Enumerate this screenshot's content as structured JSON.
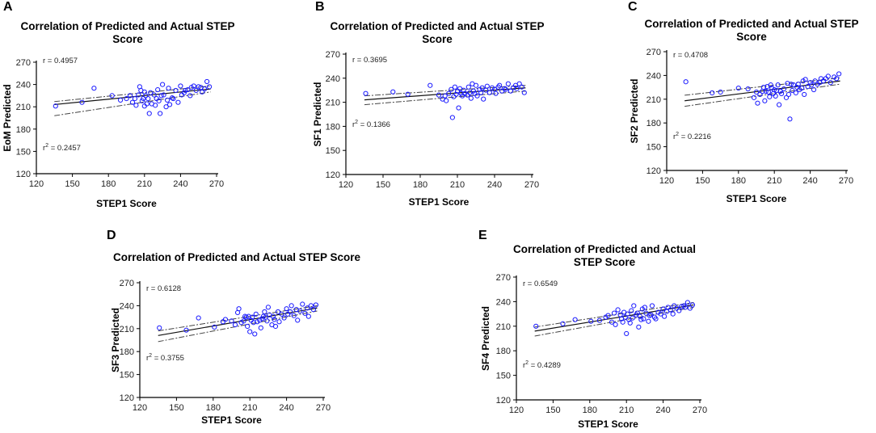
{
  "chart_data": [
    {
      "panel": "A",
      "type": "scatter",
      "title_lines": [
        "Correlation of Predicted and Actual STEP",
        "Score"
      ],
      "xlabel": "STEP1 Score",
      "ylabel": "EoM Predicted",
      "xlim": [
        120,
        270
      ],
      "ylim": [
        120,
        270
      ],
      "xticks": [
        "120",
        "150",
        "180",
        "210",
        "240",
        "270"
      ],
      "yticks": [
        "120",
        "150",
        "180",
        "210",
        "240",
        "270"
      ],
      "r_label": "r = 0.4957",
      "r2_prefix": "r",
      "r2_sup": "2",
      "r2_value": " = 0.2457",
      "fit": {
        "x": [
          135,
          265
        ],
        "y": [
          213,
          234
        ],
        "ci_lower": [
          198,
          230
        ],
        "ci_upper": [
          217,
          238
        ]
      },
      "points": [
        [
          136,
          211
        ],
        [
          158,
          216
        ],
        [
          168,
          235
        ],
        [
          183,
          225
        ],
        [
          190,
          219
        ],
        [
          195,
          221
        ],
        [
          198,
          225
        ],
        [
          200,
          216
        ],
        [
          202,
          221
        ],
        [
          203,
          212
        ],
        [
          205,
          226
        ],
        [
          206,
          237
        ],
        [
          207,
          232
        ],
        [
          208,
          218
        ],
        [
          209,
          221
        ],
        [
          210,
          230
        ],
        [
          210,
          211
        ],
        [
          211,
          225
        ],
        [
          212,
          214
        ],
        [
          213,
          221
        ],
        [
          214,
          201
        ],
        [
          215,
          229
        ],
        [
          216,
          214
        ],
        [
          218,
          226
        ],
        [
          219,
          212
        ],
        [
          220,
          221
        ],
        [
          221,
          233
        ],
        [
          222,
          218
        ],
        [
          223,
          201
        ],
        [
          224,
          225
        ],
        [
          225,
          240
        ],
        [
          226,
          226
        ],
        [
          228,
          210
        ],
        [
          229,
          219
        ],
        [
          230,
          235
        ],
        [
          231,
          213
        ],
        [
          233,
          222
        ],
        [
          234,
          221
        ],
        [
          236,
          232
        ],
        [
          238,
          216
        ],
        [
          240,
          238
        ],
        [
          241,
          226
        ],
        [
          243,
          229
        ],
        [
          244,
          232
        ],
        [
          246,
          233
        ],
        [
          248,
          225
        ],
        [
          249,
          236
        ],
        [
          251,
          238
        ],
        [
          253,
          232
        ],
        [
          255,
          237
        ],
        [
          257,
          236
        ],
        [
          258,
          230
        ],
        [
          260,
          234
        ],
        [
          262,
          244
        ],
        [
          264,
          237
        ]
      ]
    },
    {
      "panel": "B",
      "type": "scatter",
      "title_lines": [
        "Correlation of Predicted and Actual STEP",
        "Score"
      ],
      "xlabel": "STEP1 Score",
      "ylabel": "SF1 Predicted",
      "xlim": [
        120,
        270
      ],
      "ylim": [
        120,
        270
      ],
      "xticks": [
        "120",
        "150",
        "180",
        "210",
        "240",
        "270"
      ],
      "yticks": [
        "120",
        "150",
        "180",
        "210",
        "240",
        "270"
      ],
      "r_label": "r = 0.3695",
      "r2_prefix": "r",
      "r2_sup": "2",
      "r2_value": " = 0.1366",
      "fit": {
        "x": [
          135,
          265
        ],
        "y": [
          213,
          228
        ],
        "ci_lower": [
          207,
          224
        ],
        "ci_upper": [
          218,
          231
        ]
      },
      "points": [
        [
          136,
          221
        ],
        [
          158,
          223
        ],
        [
          170,
          220
        ],
        [
          188,
          231
        ],
        [
          195,
          219
        ],
        [
          198,
          214
        ],
        [
          200,
          218
        ],
        [
          201,
          212
        ],
        [
          203,
          221
        ],
        [
          205,
          226
        ],
        [
          206,
          191
        ],
        [
          207,
          217
        ],
        [
          208,
          229
        ],
        [
          209,
          220
        ],
        [
          210,
          224
        ],
        [
          211,
          203
        ],
        [
          212,
          227
        ],
        [
          213,
          221
        ],
        [
          214,
          218
        ],
        [
          215,
          225
        ],
        [
          216,
          221
        ],
        [
          218,
          219
        ],
        [
          219,
          229
        ],
        [
          220,
          222
        ],
        [
          221,
          215
        ],
        [
          222,
          233
        ],
        [
          223,
          224
        ],
        [
          224,
          221
        ],
        [
          225,
          231
        ],
        [
          226,
          218
        ],
        [
          228,
          226
        ],
        [
          229,
          222
        ],
        [
          230,
          228
        ],
        [
          231,
          214
        ],
        [
          233,
          225
        ],
        [
          234,
          230
        ],
        [
          236,
          222
        ],
        [
          238,
          228
        ],
        [
          240,
          226
        ],
        [
          241,
          221
        ],
        [
          243,
          229
        ],
        [
          244,
          231
        ],
        [
          246,
          224
        ],
        [
          248,
          227
        ],
        [
          249,
          226
        ],
        [
          251,
          233
        ],
        [
          253,
          224
        ],
        [
          255,
          228
        ],
        [
          257,
          231
        ],
        [
          258,
          227
        ],
        [
          260,
          233
        ],
        [
          262,
          229
        ],
        [
          264,
          222
        ]
      ]
    },
    {
      "panel": "C",
      "type": "scatter",
      "title_lines": [
        "Correlation of Predicted and Actual STEP",
        "Score"
      ],
      "xlabel": "STEP1 Score",
      "ylabel": "SF2 Predicted",
      "xlim": [
        120,
        270
      ],
      "ylim": [
        120,
        270
      ],
      "xticks": [
        "120",
        "150",
        "180",
        "210",
        "240",
        "270"
      ],
      "yticks": [
        "120",
        "150",
        "180",
        "210",
        "240",
        "270"
      ],
      "r_label": "r = 0.4708",
      "r2_prefix": "r",
      "r2_sup": "2",
      "r2_value": " = 0.2216",
      "fit": {
        "x": [
          135,
          265
        ],
        "y": [
          208,
          233
        ],
        "ci_lower": [
          201,
          229
        ],
        "ci_upper": [
          215,
          237
        ]
      },
      "points": [
        [
          136,
          232
        ],
        [
          158,
          218
        ],
        [
          165,
          219
        ],
        [
          180,
          224
        ],
        [
          188,
          223
        ],
        [
          193,
          212
        ],
        [
          195,
          219
        ],
        [
          196,
          205
        ],
        [
          198,
          216
        ],
        [
          200,
          220
        ],
        [
          201,
          225
        ],
        [
          202,
          208
        ],
        [
          203,
          220
        ],
        [
          204,
          226
        ],
        [
          205,
          219
        ],
        [
          206,
          213
        ],
        [
          207,
          228
        ],
        [
          208,
          224
        ],
        [
          209,
          217
        ],
        [
          210,
          222
        ],
        [
          211,
          214
        ],
        [
          212,
          221
        ],
        [
          213,
          228
        ],
        [
          214,
          203
        ],
        [
          215,
          220
        ],
        [
          216,
          217
        ],
        [
          218,
          223
        ],
        [
          220,
          212
        ],
        [
          221,
          230
        ],
        [
          222,
          216
        ],
        [
          223,
          185
        ],
        [
          224,
          229
        ],
        [
          225,
          221
        ],
        [
          226,
          228
        ],
        [
          228,
          218
        ],
        [
          229,
          225
        ],
        [
          230,
          229
        ],
        [
          231,
          222
        ],
        [
          233,
          224
        ],
        [
          234,
          233
        ],
        [
          235,
          216
        ],
        [
          236,
          235
        ],
        [
          238,
          226
        ],
        [
          240,
          231
        ],
        [
          241,
          228
        ],
        [
          243,
          222
        ],
        [
          244,
          233
        ],
        [
          246,
          229
        ],
        [
          248,
          231
        ],
        [
          249,
          236
        ],
        [
          251,
          233
        ],
        [
          253,
          236
        ],
        [
          255,
          239
        ],
        [
          257,
          231
        ],
        [
          260,
          238
        ],
        [
          262,
          236
        ],
        [
          264,
          242
        ]
      ]
    },
    {
      "panel": "D",
      "type": "scatter",
      "title_lines": [
        "Correlation of Predicted and Actual STEP Score"
      ],
      "xlabel": "STEP1 Score",
      "ylabel": "SF3 Predicted",
      "xlim": [
        120,
        270
      ],
      "ylim": [
        120,
        270
      ],
      "xticks": [
        "120",
        "150",
        "180",
        "210",
        "240",
        "270"
      ],
      "yticks": [
        "120",
        "150",
        "180",
        "210",
        "240",
        "270"
      ],
      "r_label": "r = 0.6128",
      "r2_prefix": "r",
      "r2_sup": "2",
      "r2_value": " = 0.3755",
      "fit": {
        "x": [
          135,
          265
        ],
        "y": [
          201,
          237
        ],
        "ci_lower": [
          193,
          233
        ],
        "ci_upper": [
          207,
          240
        ]
      },
      "points": [
        [
          136,
          211
        ],
        [
          158,
          208
        ],
        [
          168,
          224
        ],
        [
          181,
          212
        ],
        [
          188,
          219
        ],
        [
          190,
          222
        ],
        [
          195,
          220
        ],
        [
          198,
          215
        ],
        [
          200,
          231
        ],
        [
          201,
          236
        ],
        [
          203,
          218
        ],
        [
          205,
          220
        ],
        [
          206,
          226
        ],
        [
          207,
          225
        ],
        [
          208,
          213
        ],
        [
          209,
          226
        ],
        [
          210,
          206
        ],
        [
          211,
          221
        ],
        [
          212,
          225
        ],
        [
          213,
          218
        ],
        [
          214,
          203
        ],
        [
          215,
          229
        ],
        [
          216,
          219
        ],
        [
          218,
          221
        ],
        [
          219,
          211
        ],
        [
          220,
          223
        ],
        [
          221,
          226
        ],
        [
          222,
          232
        ],
        [
          223,
          225
        ],
        [
          224,
          220
        ],
        [
          225,
          238
        ],
        [
          226,
          228
        ],
        [
          228,
          215
        ],
        [
          229,
          226
        ],
        [
          230,
          222
        ],
        [
          231,
          213
        ],
        [
          233,
          232
        ],
        [
          234,
          219
        ],
        [
          236,
          229
        ],
        [
          238,
          224
        ],
        [
          240,
          236
        ],
        [
          241,
          229
        ],
        [
          243,
          232
        ],
        [
          244,
          240
        ],
        [
          246,
          227
        ],
        [
          248,
          235
        ],
        [
          249,
          221
        ],
        [
          251,
          233
        ],
        [
          253,
          242
        ],
        [
          255,
          230
        ],
        [
          257,
          237
        ],
        [
          258,
          226
        ],
        [
          260,
          240
        ],
        [
          262,
          235
        ],
        [
          264,
          241
        ]
      ]
    },
    {
      "panel": "E",
      "type": "scatter",
      "title_lines": [
        "Correlation of Predicted and Actual",
        "STEP Score"
      ],
      "xlabel": "STEP1 Score",
      "ylabel": "SF4 Predicted",
      "xlim": [
        120,
        270
      ],
      "ylim": [
        120,
        270
      ],
      "xticks": [
        "120",
        "150",
        "180",
        "210",
        "240",
        "270"
      ],
      "yticks": [
        "120",
        "150",
        "180",
        "210",
        "240",
        "270"
      ],
      "r_label": "r = 0.6549",
      "r2_prefix": "r",
      "r2_sup": "2",
      "r2_value": " = 0.4289",
      "fit": {
        "x": [
          135,
          265
        ],
        "y": [
          204,
          236
        ],
        "ci_lower": [
          198,
          233
        ],
        "ci_upper": [
          209,
          239
        ]
      },
      "points": [
        [
          136,
          210
        ],
        [
          158,
          213
        ],
        [
          168,
          218
        ],
        [
          181,
          216
        ],
        [
          188,
          217
        ],
        [
          193,
          221
        ],
        [
          195,
          223
        ],
        [
          198,
          215
        ],
        [
          200,
          226
        ],
        [
          201,
          212
        ],
        [
          203,
          230
        ],
        [
          205,
          224
        ],
        [
          206,
          219
        ],
        [
          207,
          215
        ],
        [
          208,
          227
        ],
        [
          209,
          221
        ],
        [
          210,
          201
        ],
        [
          211,
          225
        ],
        [
          212,
          218
        ],
        [
          213,
          214
        ],
        [
          214,
          229
        ],
        [
          215,
          220
        ],
        [
          216,
          235
        ],
        [
          218,
          224
        ],
        [
          219,
          226
        ],
        [
          220,
          209
        ],
        [
          221,
          222
        ],
        [
          222,
          218
        ],
        [
          223,
          231
        ],
        [
          224,
          219
        ],
        [
          225,
          233
        ],
        [
          226,
          226
        ],
        [
          228,
          216
        ],
        [
          229,
          223
        ],
        [
          230,
          224
        ],
        [
          231,
          235
        ],
        [
          233,
          221
        ],
        [
          234,
          219
        ],
        [
          236,
          227
        ],
        [
          238,
          225
        ],
        [
          240,
          231
        ],
        [
          241,
          222
        ],
        [
          243,
          228
        ],
        [
          244,
          233
        ],
        [
          246,
          230
        ],
        [
          248,
          225
        ],
        [
          249,
          235
        ],
        [
          251,
          232
        ],
        [
          253,
          229
        ],
        [
          255,
          234
        ],
        [
          257,
          235
        ],
        [
          258,
          233
        ],
        [
          260,
          239
        ],
        [
          262,
          232
        ],
        [
          264,
          236
        ]
      ]
    }
  ]
}
